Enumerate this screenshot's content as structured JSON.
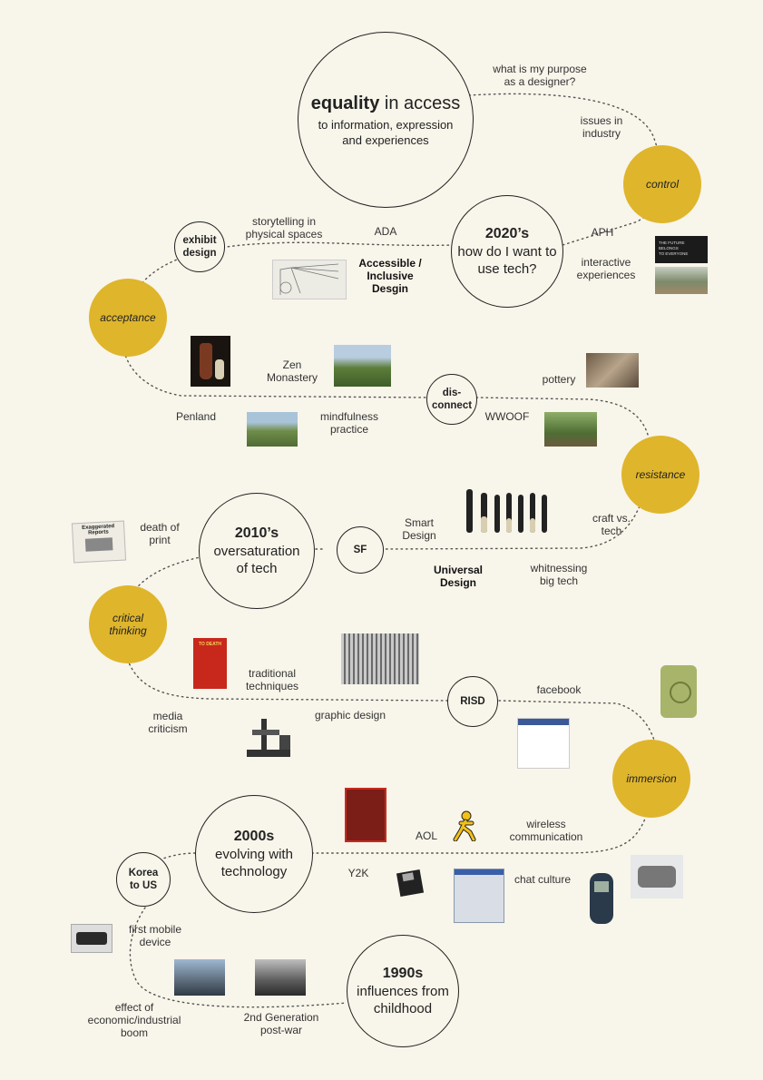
{
  "title": {
    "bold": "equality",
    "rest": " in access",
    "sub": "to information, expression\nand experiences"
  },
  "stages": [
    {
      "l1": "2020’s",
      "l2": "how do I want to\nuse tech?"
    },
    {
      "l1": "2010’s",
      "l2": "oversaturation\nof tech"
    },
    {
      "l1": "2000s",
      "l2": "evolving with\ntechnology"
    },
    {
      "l1": "1990s",
      "l2": "influences from\nchildhood"
    }
  ],
  "nodes": {
    "exhibit": "exhibit\ndesign",
    "disconnect": "dis-\nconnect",
    "sf": "SF",
    "risd": "RISD",
    "korea": "Korea\nto US"
  },
  "themes": {
    "control": "control",
    "acceptance": "acceptance",
    "resistance": "resistance",
    "critical": "critical\nthinking",
    "immersion": "immersion"
  },
  "labels": {
    "purpose": "what is my purpose\nas a designer?",
    "issues": "issues in\nindustry",
    "storytelling": "storytelling in\nphysical spaces",
    "ada": "ADA",
    "aph": "APH",
    "accessible": "Accessible /\nInclusive\nDesgin",
    "interactive": "interactive\nexperiences",
    "zen": "Zen\nMonastery",
    "pottery": "pottery",
    "penland": "Penland",
    "mindfulness": "mindfulness\npractice",
    "wwoof": "WWOOF",
    "craft": "craft vs.\ntech",
    "smart": "Smart\nDesign",
    "universal": "Universal\nDesign",
    "whitnessing": "whitnessing\nbig tech",
    "death": "death of\nprint",
    "traditional": "traditional\ntechniques",
    "facebook": "facebook",
    "media": "media\ncriticism",
    "graphic": "graphic design",
    "aol": "AOL",
    "wireless": "wireless\ncommunication",
    "y2k": "Y2K",
    "chat": "chat culture",
    "firstmobile": "first mobile\ndevice",
    "economic": "effect of\neconomic/industrial\nboom",
    "postwar": "2nd Generation\npost-war"
  },
  "image_texts": {
    "future_museum": "THE FUTURE BELONGS\nTO EVERYONE",
    "exaggerated": "Exaggerated Reports",
    "to_death": "TO DEATH"
  },
  "colors": {
    "background": "#f8f5ea",
    "theme_gold": "#dfb52c",
    "line": "#222222"
  }
}
